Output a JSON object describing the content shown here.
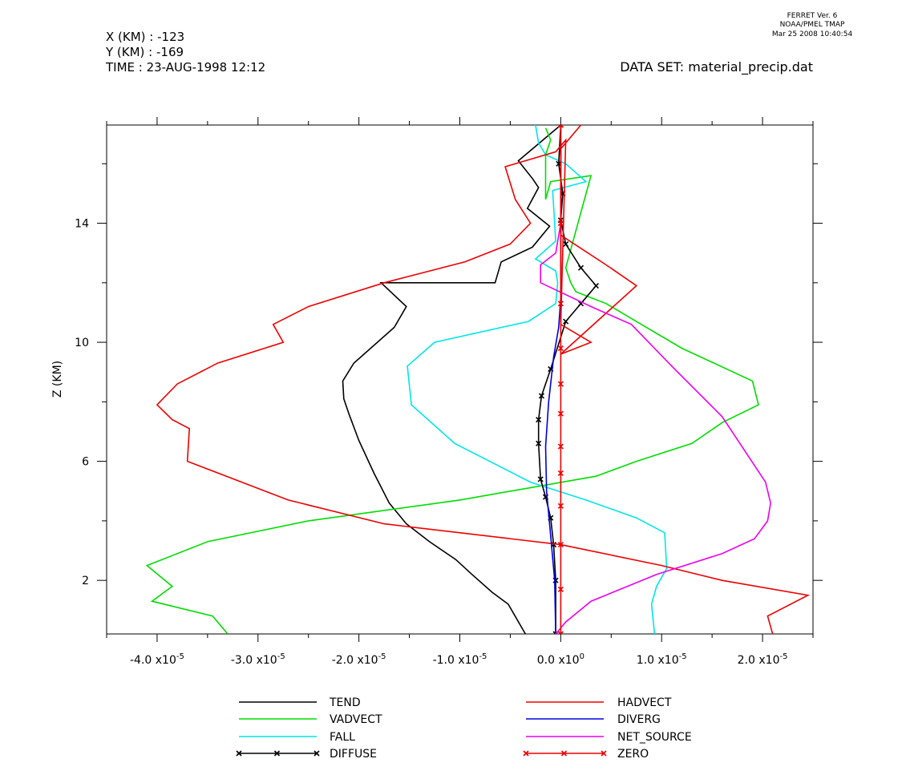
{
  "header": {
    "program": "FERRET Ver. 6",
    "org": "NOAA/PMEL TMAP",
    "timestamp": "Mar 25 2008 10:40:54",
    "x_info": "X (KM) : -123",
    "y_info": "Y (KM) : -169",
    "time_info": "TIME : 23-AUG-1998 12:12",
    "dataset": "DATA SET: material_precip.dat"
  },
  "chart_data": {
    "type": "line",
    "title": "",
    "xlabel": "",
    "ylabel": "Z (KM)",
    "xlim": [
      -4.5e-05,
      2.5e-05
    ],
    "ylim": [
      0.2,
      17.3
    ],
    "x_ticks": [
      {
        "value": -4e-05,
        "mant": "-4.0",
        "exp": "-5"
      },
      {
        "value": -3e-05,
        "mant": "-3.0",
        "exp": "-5"
      },
      {
        "value": -2e-05,
        "mant": "-2.0",
        "exp": "-5"
      },
      {
        "value": -1e-05,
        "mant": "-1.0",
        "exp": "-5"
      },
      {
        "value": 0.0,
        "mant": "0.0",
        "exp": "0"
      },
      {
        "value": 1e-05,
        "mant": "1.0",
        "exp": "-5"
      },
      {
        "value": 2e-05,
        "mant": "2.0",
        "exp": "-5"
      }
    ],
    "x_tick_base": "x10",
    "y_ticks": [
      2,
      6,
      10,
      14
    ],
    "y_minor_ticks": [
      4,
      8,
      12,
      16
    ],
    "x_minor_ticks": [
      -4.5e-05,
      -3.5e-05,
      -2.5e-05,
      -1.5e-05,
      -5e-06,
      5e-06,
      1.5e-05,
      2.5e-05
    ],
    "legend_position": "bottom",
    "series": [
      {
        "name": "TEND",
        "color": "#000000",
        "marker": false,
        "x": [
          -3.5e-06,
          -5.2e-06,
          -6.8e-06,
          -8.8e-06,
          -1.04e-05,
          -1.3e-05,
          -1.53e-05,
          -1.7e-05,
          -1.85e-05,
          -2e-05,
          -2.1e-05,
          -2.15e-05,
          -2.16e-05,
          -2.05e-05,
          -1.65e-05,
          -1.53e-05,
          -1.78e-05,
          -6.5e-06,
          -5.9e-06,
          -2.8e-06,
          -1.1e-06,
          -3.3e-06,
          -2.2e-06,
          -2.8e-06,
          -4.2e-06,
          0.0
        ],
        "y": [
          0.2,
          1.2,
          1.6,
          2.2,
          2.7,
          3.3,
          3.9,
          4.6,
          5.6,
          6.7,
          7.6,
          8.1,
          8.7,
          9.3,
          10.5,
          11.2,
          12.0,
          12.0,
          12.7,
          13.2,
          13.9,
          14.5,
          15.2,
          15.5,
          16.1,
          17.3
        ]
      },
      {
        "name": "VADVECT",
        "color": "#00dd00",
        "marker": false,
        "x": [
          -3.3e-05,
          -3.45e-05,
          -4.05e-05,
          -3.85e-05,
          -4.1e-05,
          -3.5e-05,
          -2.5e-05,
          -1e-05,
          3.5e-06,
          7.5e-06,
          1.3e-05,
          1.6e-05,
          1.96e-05,
          1.9e-05,
          1.2e-05,
          8e-06,
          4.5e-06,
          1.5e-06,
          1e-06,
          5e-07,
          3e-06,
          -1e-06,
          -1.5e-06,
          -1.5e-06,
          -1e-06,
          -1.5e-06
        ],
        "y": [
          0.2,
          0.8,
          1.3,
          1.8,
          2.5,
          3.3,
          4.0,
          4.7,
          5.5,
          6.0,
          6.6,
          7.3,
          7.9,
          8.7,
          9.8,
          10.6,
          11.3,
          11.7,
          12.0,
          12.5,
          15.6,
          15.4,
          14.8,
          16.3,
          16.8,
          17.2
        ]
      },
      {
        "name": "FALL",
        "color": "#00e6e6",
        "marker": false,
        "x": [
          9.3e-06,
          9e-06,
          9.5e-06,
          1.05e-05,
          1.03e-05,
          7.5e-06,
          2.5e-06,
          -3e-06,
          -1.05e-05,
          -1.48e-05,
          -1.52e-05,
          -1.25e-05,
          -3.2e-06,
          -5e-07,
          -3e-07,
          -5e-07,
          -2.5e-06,
          -5e-07,
          -8e-07,
          2.5e-06,
          5e-07,
          -1.5e-06,
          -2.2e-06,
          -2.5e-06
        ],
        "y": [
          0.2,
          1.2,
          1.8,
          2.4,
          3.6,
          4.1,
          4.7,
          5.3,
          6.6,
          7.9,
          9.2,
          10.0,
          10.7,
          11.3,
          12.0,
          12.4,
          12.8,
          13.4,
          15.1,
          15.4,
          16.0,
          16.3,
          16.7,
          17.3
        ]
      },
      {
        "name": "DIFFUSE",
        "color": "#000000",
        "marker": true,
        "x": [
          -5e-07,
          -5e-07,
          -7e-07,
          -1e-06,
          -1.5e-06,
          -2e-06,
          -2.2e-06,
          -2.2e-06,
          -1.9e-06,
          -1e-06,
          5e-07,
          2e-06,
          3.5e-06,
          2e-06,
          5e-07,
          0.0,
          2e-07,
          -2e-07,
          0.0
        ],
        "y": [
          0.2,
          2.0,
          3.2,
          4.1,
          4.8,
          5.4,
          6.6,
          7.4,
          8.2,
          9.1,
          10.7,
          11.3,
          11.9,
          12.5,
          13.3,
          14.1,
          15.0,
          16.0,
          17.3
        ]
      },
      {
        "name": "HADVECT",
        "color": "#ee0000",
        "marker": false,
        "x": [
          2.1e-05,
          2.05e-05,
          2.45e-05,
          1.6e-05,
          1e-05,
          0.0,
          -1.75e-05,
          -2.7e-05,
          -3.7e-05,
          -3.68e-05,
          -3.85e-05,
          -4e-05,
          -3.8e-05,
          -3.4e-05,
          -2.75e-05,
          -2.85e-05,
          -2.5e-05,
          -1.75e-05,
          -9.5e-06,
          -5e-06,
          -3e-06,
          -4.5e-06,
          -5.5e-06,
          -5e-07,
          5e-07,
          0.0,
          3e-06,
          0.0,
          7.5e-06,
          4.5e-06,
          0.0,
          0.0,
          0.0,
          0.0,
          2e-06
        ],
        "y": [
          0.2,
          0.8,
          1.5,
          2.0,
          2.5,
          3.2,
          3.9,
          4.7,
          6.0,
          7.1,
          7.4,
          7.9,
          8.6,
          9.3,
          10.0,
          10.6,
          11.2,
          12.0,
          12.7,
          13.3,
          14.0,
          14.8,
          15.9,
          16.4,
          16.8,
          10.6,
          10.0,
          9.6,
          11.9,
          12.6,
          13.6,
          14.5,
          15.5,
          16.5,
          17.3
        ]
      },
      {
        "name": "DIVERG",
        "color": "#0000dd",
        "marker": false,
        "x": [
          -5e-07,
          -6e-07,
          -1e-06,
          -1.4e-06,
          -1.5e-06,
          -1.2e-06,
          -7e-07,
          -2e-07,
          0.0,
          0.0,
          0.0,
          0.0
        ],
        "y": [
          0.2,
          2.0,
          3.5,
          5.0,
          6.5,
          8.0,
          9.5,
          10.5,
          11.5,
          13.0,
          15.0,
          17.3
        ]
      },
      {
        "name": "NET_SOURCE",
        "color": "#ee00ee",
        "marker": false,
        "x": [
          -5e-07,
          5e-07,
          3e-06,
          9.5e-06,
          1.6e-05,
          1.92e-05,
          2.05e-05,
          2.08e-05,
          2.03e-05,
          1.6e-05,
          1.1e-05,
          7e-06,
          3e-06,
          -2e-06,
          -2e-06,
          -5e-07,
          0.0,
          0.0,
          0.0
        ],
        "y": [
          0.2,
          0.6,
          1.3,
          2.2,
          2.9,
          3.4,
          4.0,
          4.6,
          5.3,
          7.5,
          9.2,
          10.6,
          11.2,
          12.0,
          12.6,
          13.0,
          14.0,
          15.5,
          17.3
        ]
      },
      {
        "name": "ZERO",
        "color": "#ee0000",
        "marker": true,
        "x": [
          0.0,
          0.0,
          0.0,
          0.0,
          0.0,
          0.0,
          0.0,
          0.0,
          0.0,
          0.0,
          0.0,
          0.0
        ],
        "y": [
          0.2,
          1.7,
          3.2,
          4.5,
          5.6,
          6.5,
          7.6,
          8.6,
          9.8,
          11.3,
          14.0,
          17.3
        ]
      }
    ]
  }
}
